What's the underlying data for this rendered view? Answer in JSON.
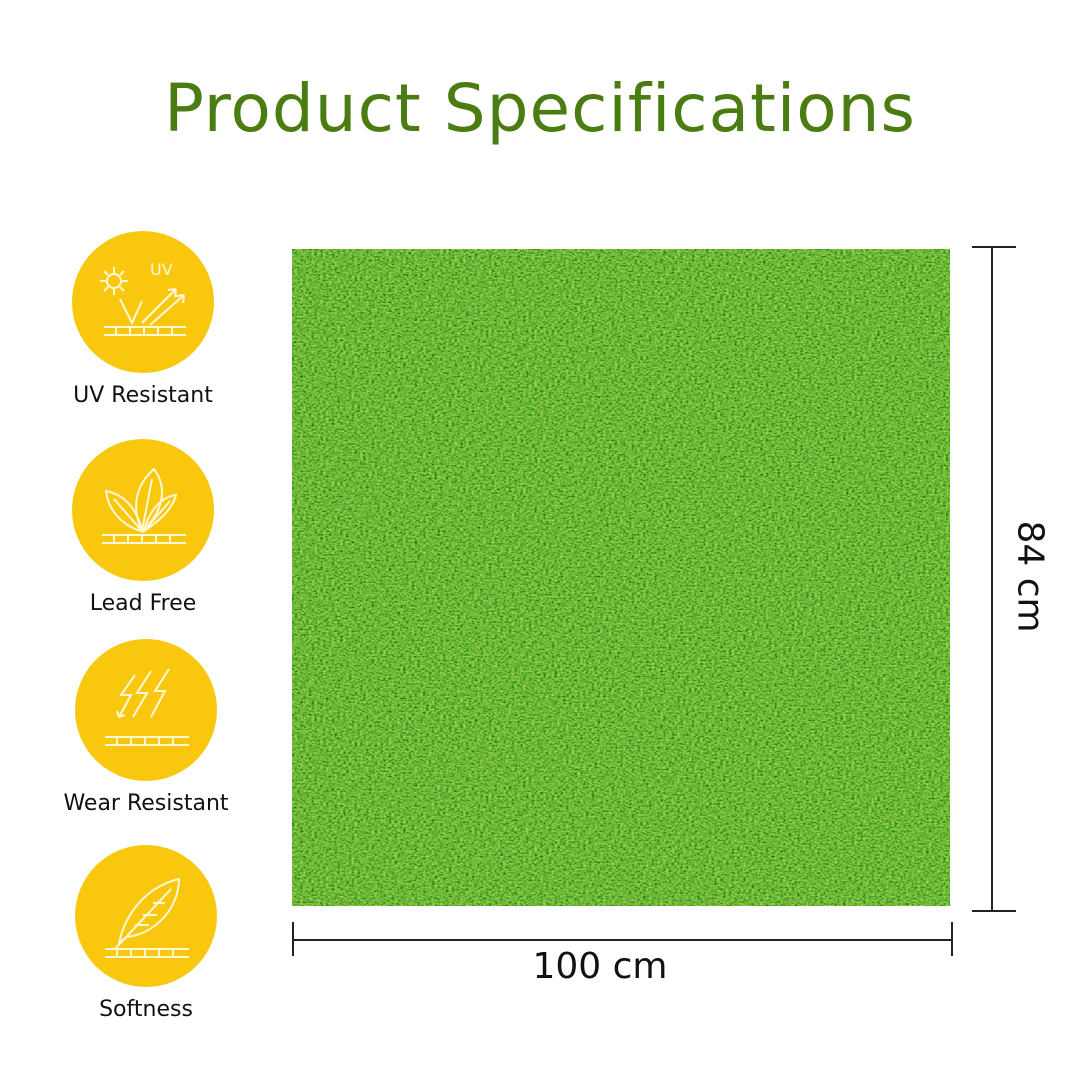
{
  "title": "Product Specifications",
  "features": [
    {
      "label": "UV Resistant",
      "icon": "uv-icon"
    },
    {
      "label": "Lead Free",
      "icon": "leaf-icon"
    },
    {
      "label": "Wear Resistant",
      "icon": "lightning-icon"
    },
    {
      "label": "Softness",
      "icon": "feather-icon"
    }
  ],
  "dimensions": {
    "width": "100 cm",
    "height": "84 cm"
  },
  "colors": {
    "title": "#4a7c12",
    "icon_bg": "#f9c80e",
    "grass": "#4caf1f"
  }
}
